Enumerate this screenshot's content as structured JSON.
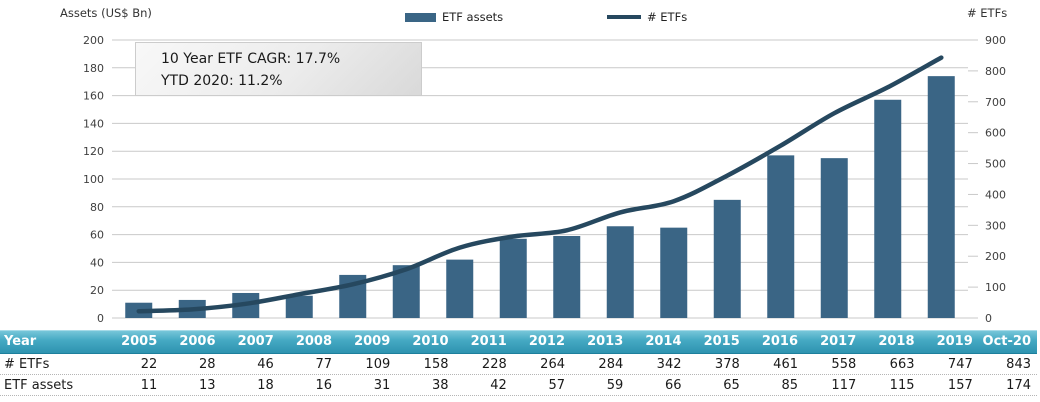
{
  "chart": {
    "left_axis_title": "Assets (US$ Bn)",
    "right_axis_title": "# ETFs",
    "legend": {
      "bar_label": "ETF assets",
      "line_label": "# ETFs"
    },
    "annotation": {
      "line1": "10 Year ETF CAGR: 17.7%",
      "line2": "YTD 2020: 11.2%"
    }
  },
  "chart_data": {
    "type": "bar+line",
    "categories": [
      "2005",
      "2006",
      "2007",
      "2008",
      "2009",
      "2010",
      "2011",
      "2012",
      "2013",
      "2014",
      "2015",
      "2016",
      "2017",
      "2018",
      "2019",
      "Oct-20"
    ],
    "series": [
      {
        "name": "ETF assets",
        "type": "bar",
        "axis": "left",
        "values": [
          11,
          13,
          18,
          16,
          31,
          38,
          42,
          57,
          59,
          66,
          65,
          85,
          117,
          115,
          157,
          174
        ]
      },
      {
        "name": "# ETFs",
        "type": "line",
        "axis": "right",
        "values": [
          22,
          28,
          46,
          77,
          109,
          158,
          228,
          264,
          284,
          342,
          378,
          461,
          558,
          663,
          747,
          843
        ]
      }
    ],
    "left_axis": {
      "title": "Assets (US$ Bn)",
      "min": 0,
      "max": 200,
      "step": 20
    },
    "right_axis": {
      "title": "# ETFs",
      "min": 0,
      "max": 900,
      "step": 100
    },
    "legend_position": "top",
    "grid": true,
    "colors": {
      "bar": "#3A6585",
      "line": "#26485F",
      "grid": "#C9C9C9",
      "axis_text": "#3f3f3f",
      "table_header": "#3AA0BB"
    }
  },
  "table": {
    "header_label": "Year",
    "columns": [
      "2005",
      "2006",
      "2007",
      "2008",
      "2009",
      "2010",
      "2011",
      "2012",
      "2013",
      "2014",
      "2015",
      "2016",
      "2017",
      "2018",
      "2019",
      "Oct-20"
    ],
    "rows": [
      {
        "label": "# ETFs",
        "values": [
          "22",
          "28",
          "46",
          "77",
          "109",
          "158",
          "228",
          "264",
          "284",
          "342",
          "378",
          "461",
          "558",
          "663",
          "747",
          "843"
        ]
      },
      {
        "label": "ETF assets",
        "values": [
          "11",
          "13",
          "18",
          "16",
          "31",
          "38",
          "42",
          "57",
          "59",
          "66",
          "65",
          "85",
          "117",
          "115",
          "157",
          "174"
        ]
      }
    ]
  }
}
